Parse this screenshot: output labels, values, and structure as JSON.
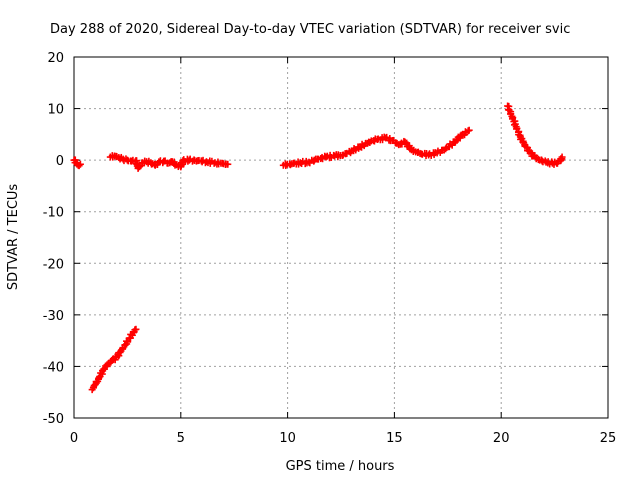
{
  "chart_data": {
    "type": "scatter",
    "title": "Day 288 of 2020, Sidereal Day-to-day VTEC variation (SDTVAR) for receiver svic",
    "xlabel": "GPS time / hours",
    "ylabel": "SDTVAR / TECUs",
    "xlim": [
      0,
      25
    ],
    "ylim": [
      -50,
      20
    ],
    "xticks": [
      0,
      5,
      10,
      15,
      20,
      25
    ],
    "yticks": [
      -50,
      -40,
      -30,
      -20,
      -10,
      0,
      10,
      20
    ],
    "grid": true,
    "marker": "+",
    "color": "#ff0000",
    "series": [
      {
        "name": "SDTVAR",
        "segments": [
          [
            [
              0.0,
              0.0
            ],
            [
              0.1,
              -0.5
            ],
            [
              0.2,
              -1.0
            ],
            [
              0.3,
              -0.8
            ]
          ],
          [
            [
              0.85,
              -44.5
            ],
            [
              1.0,
              -43.5
            ],
            [
              1.2,
              -42.0
            ],
            [
              1.4,
              -40.5
            ],
            [
              1.6,
              -39.5
            ],
            [
              1.8,
              -38.8
            ],
            [
              2.0,
              -38.2
            ],
            [
              2.2,
              -37.0
            ],
            [
              2.4,
              -35.8
            ],
            [
              2.6,
              -34.5
            ],
            [
              2.8,
              -33.3
            ],
            [
              2.9,
              -32.8
            ]
          ],
          [
            [
              1.7,
              0.6
            ],
            [
              1.9,
              0.8
            ],
            [
              2.1,
              0.5
            ],
            [
              2.3,
              0.2
            ],
            [
              2.5,
              0.0
            ],
            [
              2.7,
              -0.2
            ],
            [
              2.9,
              -0.1
            ],
            [
              3.0,
              -1.6
            ],
            [
              3.2,
              -0.5
            ],
            [
              3.4,
              -0.3
            ],
            [
              3.6,
              -0.5
            ],
            [
              3.8,
              -1.0
            ],
            [
              4.0,
              -0.4
            ],
            [
              4.2,
              -0.2
            ],
            [
              4.4,
              -0.6
            ],
            [
              4.6,
              -0.3
            ],
            [
              4.8,
              -0.9
            ],
            [
              5.0,
              -1.3
            ],
            [
              5.1,
              -0.1
            ],
            [
              5.4,
              0.0
            ],
            [
              5.8,
              -0.1
            ],
            [
              6.2,
              -0.3
            ],
            [
              6.6,
              -0.5
            ],
            [
              7.0,
              -0.7
            ],
            [
              7.2,
              -0.8
            ]
          ],
          [
            [
              9.8,
              -1.0
            ],
            [
              10.2,
              -0.7
            ],
            [
              10.6,
              -0.5
            ],
            [
              11.0,
              -0.4
            ],
            [
              11.4,
              0.2
            ],
            [
              11.8,
              0.6
            ],
            [
              12.2,
              0.8
            ],
            [
              12.6,
              1.0
            ],
            [
              13.0,
              1.8
            ],
            [
              13.4,
              2.6
            ],
            [
              13.8,
              3.5
            ],
            [
              14.2,
              4.0
            ],
            [
              14.6,
              4.3
            ],
            [
              14.9,
              3.8
            ],
            [
              15.2,
              3.0
            ],
            [
              15.5,
              3.5
            ],
            [
              15.8,
              2.0
            ],
            [
              16.2,
              1.3
            ],
            [
              16.6,
              1.0
            ],
            [
              17.0,
              1.4
            ],
            [
              17.4,
              2.2
            ],
            [
              17.8,
              3.5
            ],
            [
              18.2,
              5.0
            ],
            [
              18.5,
              5.8
            ]
          ],
          [
            [
              20.3,
              10.5
            ],
            [
              20.5,
              8.5
            ],
            [
              20.7,
              6.5
            ],
            [
              20.9,
              4.5
            ],
            [
              21.1,
              3.0
            ],
            [
              21.3,
              1.8
            ],
            [
              21.5,
              0.8
            ],
            [
              21.8,
              0.0
            ],
            [
              22.1,
              -0.4
            ],
            [
              22.4,
              -0.6
            ],
            [
              22.6,
              -0.6
            ],
            [
              22.8,
              0.0
            ],
            [
              22.85,
              0.6
            ]
          ]
        ]
      }
    ]
  }
}
